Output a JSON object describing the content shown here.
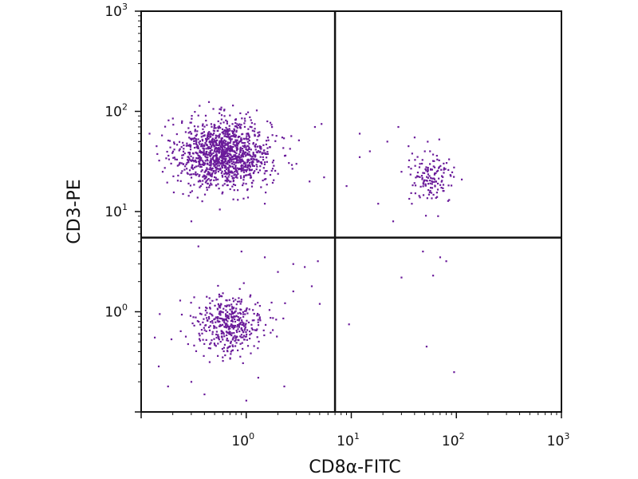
{
  "chart_data": {
    "type": "scatter",
    "xlabel": "CD8α-FITC",
    "ylabel": "CD3-PE",
    "x_scale": "log",
    "y_scale": "log",
    "xlim": [
      0.1,
      1000
    ],
    "ylim": [
      0.1,
      1000
    ],
    "x_ticks": [
      {
        "base": "10",
        "exp": "0",
        "value": 1
      },
      {
        "base": "10",
        "exp": "1",
        "value": 10
      },
      {
        "base": "10",
        "exp": "2",
        "value": 100
      },
      {
        "base": "10",
        "exp": "3",
        "value": 1000
      }
    ],
    "y_ticks": [
      {
        "base": "10",
        "exp": "0",
        "value": 1
      },
      {
        "base": "10",
        "exp": "1",
        "value": 10
      },
      {
        "base": "10",
        "exp": "2",
        "value": 100
      },
      {
        "base": "10",
        "exp": "3",
        "value": 1000
      }
    ],
    "gates": {
      "x": 7,
      "y": 5.5
    },
    "point_color": "#6a1b9a",
    "grid": false,
    "clusters": [
      {
        "name_hint": "CD3+CD8-",
        "center": [
          0.62,
          38
        ],
        "spread": [
          0.22,
          0.17
        ],
        "count": 1250
      },
      {
        "name_hint": "CD3+CD8+",
        "center": [
          58,
          21
        ],
        "spread": [
          0.11,
          0.12
        ],
        "count": 140
      },
      {
        "name_hint": "CD3-CD8-",
        "center": [
          0.68,
          0.75
        ],
        "spread": [
          0.17,
          0.15
        ],
        "count": 420
      }
    ],
    "scattered_points": [
      [
        0.12,
        60
      ],
      [
        0.14,
        45
      ],
      [
        0.16,
        25
      ],
      [
        0.2,
        85
      ],
      [
        0.25,
        15
      ],
      [
        0.3,
        8
      ],
      [
        1.5,
        12
      ],
      [
        2.2,
        55
      ],
      [
        3,
        30
      ],
      [
        4,
        20
      ],
      [
        4.5,
        70
      ],
      [
        5.2,
        75
      ],
      [
        5.5,
        22
      ],
      [
        12,
        35
      ],
      [
        15,
        40
      ],
      [
        18,
        12
      ],
      [
        22,
        50
      ],
      [
        25,
        8
      ],
      [
        30,
        25
      ],
      [
        35,
        45
      ],
      [
        12,
        60
      ],
      [
        28,
        70
      ],
      [
        40,
        55
      ],
      [
        9,
        18
      ],
      [
        45,
        30
      ],
      [
        50,
        40
      ],
      [
        0.35,
        4.5
      ],
      [
        0.9,
        4
      ],
      [
        1.5,
        3.5
      ],
      [
        2,
        2.5
      ],
      [
        2.8,
        3
      ],
      [
        3.6,
        2.8
      ],
      [
        4.8,
        3.2
      ],
      [
        0.3,
        0.2
      ],
      [
        0.18,
        0.18
      ],
      [
        0.4,
        0.15
      ],
      [
        1,
        0.13
      ],
      [
        2.3,
        0.18
      ],
      [
        1.3,
        0.22
      ],
      [
        0.15,
        0.95
      ],
      [
        2.8,
        1.6
      ],
      [
        4.2,
        1.8
      ],
      [
        5,
        1.2
      ],
      [
        9.5,
        0.75
      ],
      [
        30,
        2.2
      ],
      [
        48,
        4
      ],
      [
        60,
        2.3
      ],
      [
        70,
        3.5
      ],
      [
        80,
        3.2
      ],
      [
        52,
        0.45
      ],
      [
        95,
        0.25
      ]
    ]
  }
}
